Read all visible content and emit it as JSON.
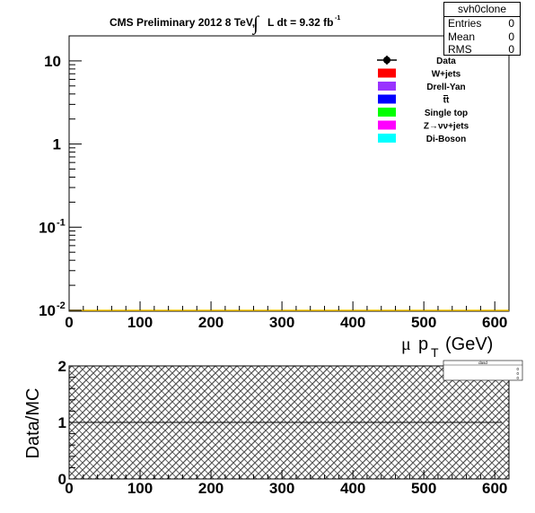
{
  "header": {
    "title_main": "CMS Preliminary 2012 8 TeV,",
    "title_integral": "∫",
    "title_lumi": "L dt = 9.32 fb",
    "title_lumi_exp": "-1"
  },
  "stats": {
    "name": "svh0clone",
    "rows": [
      {
        "label": "Entries",
        "value": "0"
      },
      {
        "label": "Mean",
        "value": "0"
      },
      {
        "label": "RMS",
        "value": "0"
      }
    ]
  },
  "mini_stats": {
    "name": "dasd",
    "values": [
      "0",
      "0",
      "0"
    ]
  },
  "colors": {
    "wjets": "#ff0000",
    "drellyan": "#9933ff",
    "ttbar": "#0000ff",
    "singletop": "#00ff00",
    "zvv": "#ff00ff",
    "diboson": "#00ffff",
    "data": "#000000",
    "bg_line": "#ffcc00"
  },
  "chart_data": [
    {
      "type": "line",
      "title": "CMS Preliminary 2012 8 TeV, ∫ L dt = 9.32 fb-1",
      "xlabel": "μ p_T (GeV)",
      "ylabel": "",
      "xlim": [
        0,
        620
      ],
      "ylim": [
        0.01,
        20
      ],
      "log_y": true,
      "x_ticks": [
        "0",
        "100",
        "200",
        "300",
        "400",
        "500",
        "600"
      ],
      "y_ticks": [
        {
          "base": "10",
          "exp": "-2"
        },
        {
          "base": "10",
          "exp": "-1"
        },
        {
          "base": "1",
          "exp": ""
        },
        {
          "base": "10",
          "exp": ""
        }
      ],
      "legend": [
        "Data",
        "W+jets",
        "Drell-Yan",
        "tt",
        "Single top",
        "Z→νν+jets",
        "Di-Boson"
      ],
      "legend_placement": "top-right",
      "series": []
    },
    {
      "type": "line",
      "title": "",
      "xlabel": "",
      "ylabel": "Data/MC",
      "xlim": [
        0,
        620
      ],
      "ylim": [
        0,
        2
      ],
      "x_ticks": [
        "0",
        "100",
        "200",
        "300",
        "400",
        "500",
        "600"
      ],
      "y_ticks": [
        "0",
        "1",
        "2"
      ],
      "reference_line": 1,
      "uncertainty_band": [
        0,
        2
      ],
      "series": []
    }
  ]
}
